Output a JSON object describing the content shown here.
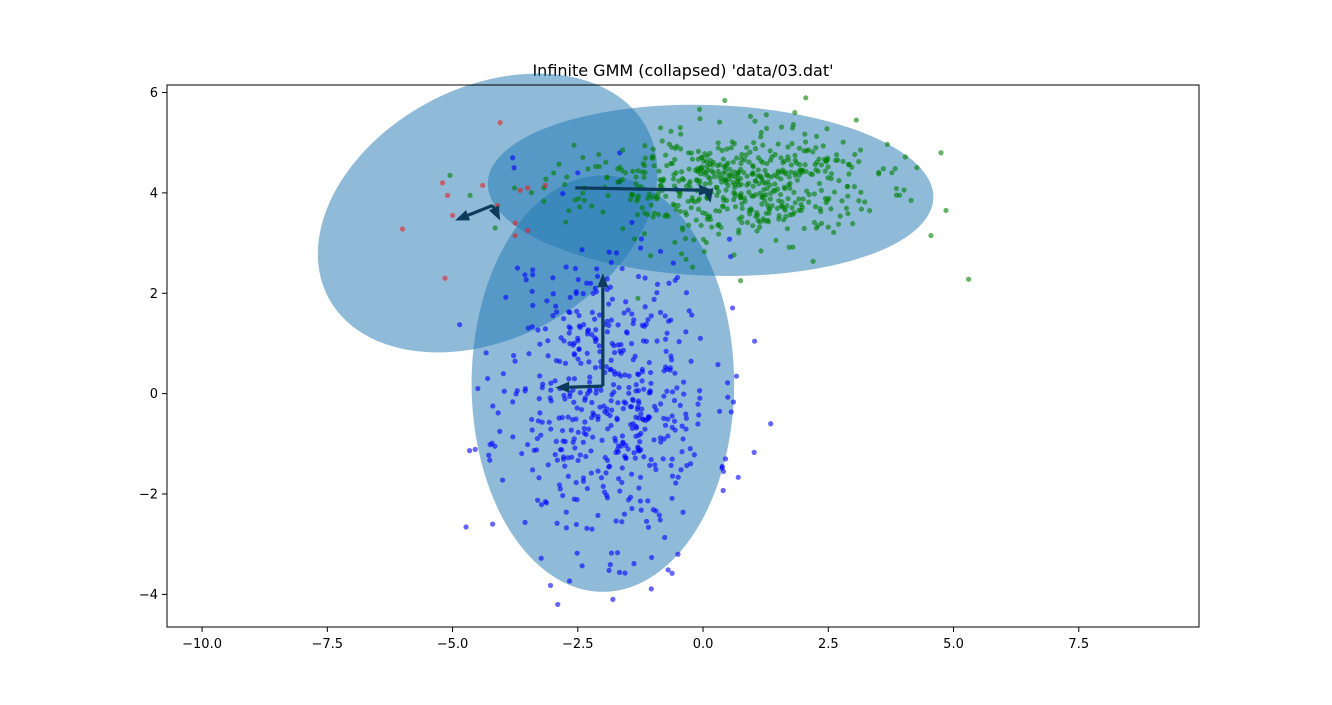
{
  "chart_data": {
    "type": "scatter",
    "title": "Infinite GMM (collapsed) 'data/03.dat'",
    "xlabel": "",
    "ylabel": "",
    "xlim": [
      -10.7,
      9.9
    ],
    "ylim": [
      -4.65,
      6.15
    ],
    "xticks": [
      -10.0,
      -7.5,
      -5.0,
      -2.5,
      0.0,
      2.5,
      5.0,
      7.5
    ],
    "xtick_labels": [
      "−10.0",
      "−7.5",
      "−5.0",
      "−2.5",
      "0.0",
      "2.5",
      "5.0",
      "7.5"
    ],
    "yticks": [
      -4,
      -2,
      0,
      2,
      4,
      6
    ],
    "ytick_labels": [
      "−4",
      "−2",
      "0",
      "2",
      "4",
      "6"
    ],
    "grid": false,
    "colors": {
      "blue_points": "#0000ff",
      "green_points": "#008000",
      "red_points": "#e32222",
      "ellipse_fill": "#1f77b4",
      "arrow": "#0d3b5c"
    },
    "ellipses": [
      {
        "center": [
          -2.0,
          0.2
        ],
        "half_width": 2.62,
        "half_height": 4.15,
        "angle_deg": 0
      },
      {
        "center": [
          0.15,
          4.05
        ],
        "half_width": 4.45,
        "half_height": 1.7,
        "angle_deg": -2
      },
      {
        "center": [
          -4.3,
          3.6
        ],
        "half_width": 3.6,
        "half_height": 2.5,
        "angle_deg": 28
      }
    ],
    "arrows": [
      {
        "from": [
          -2.0,
          0.15
        ],
        "to": [
          -2.0,
          2.4
        ]
      },
      {
        "from": [
          -2.0,
          0.15
        ],
        "to": [
          -2.95,
          0.12
        ]
      },
      {
        "from": [
          -2.55,
          4.1
        ],
        "to": [
          0.2,
          4.05
        ]
      },
      {
        "from": [
          0.1,
          4.05
        ],
        "to": [
          0.15,
          3.8
        ]
      },
      {
        "from": [
          -4.2,
          3.75
        ],
        "to": [
          -4.95,
          3.45
        ]
      },
      {
        "from": [
          -4.2,
          3.75
        ],
        "to": [
          -4.05,
          3.45
        ]
      }
    ],
    "series": [
      {
        "color": "blue",
        "generator": {
          "mean": [
            -1.9,
            0.0
          ],
          "std": [
            1.05,
            1.55
          ],
          "n": 520,
          "seed": 11
        },
        "extra_points": [
          [
            -2.9,
            -4.2
          ],
          [
            -1.8,
            -4.1
          ],
          [
            -4.2,
            -2.6
          ],
          [
            1.35,
            -0.6
          ],
          [
            -0.5,
            -3.2
          ],
          [
            0.45,
            -1.3
          ],
          [
            -4.3,
            0.3
          ],
          [
            -3.8,
            4.7
          ],
          [
            -2.5,
            4.4
          ]
        ]
      },
      {
        "color": "green",
        "generator": {
          "mean": [
            0.5,
            4.15
          ],
          "std": [
            1.45,
            0.55
          ],
          "n": 560,
          "seed": 23
        },
        "extra_points": [
          [
            5.3,
            2.28
          ],
          [
            4.85,
            3.65
          ],
          [
            4.55,
            3.15
          ],
          [
            4.75,
            4.8
          ],
          [
            -5.05,
            4.35
          ],
          [
            -4.65,
            3.95
          ],
          [
            -4.15,
            3.3
          ],
          [
            0.75,
            2.25
          ],
          [
            -1.3,
            1.9
          ]
        ]
      },
      {
        "color": "red",
        "points": [
          [
            -4.05,
            5.4
          ],
          [
            -5.2,
            4.2
          ],
          [
            -5.1,
            3.95
          ],
          [
            -4.4,
            4.15
          ],
          [
            -3.5,
            4.1
          ],
          [
            -3.65,
            4.05
          ],
          [
            -3.15,
            4.15
          ],
          [
            -4.1,
            3.75
          ],
          [
            -5.0,
            3.55
          ],
          [
            -3.75,
            3.4
          ],
          [
            -3.5,
            3.25
          ],
          [
            -3.75,
            3.15
          ],
          [
            -6.0,
            3.28
          ],
          [
            -5.15,
            2.3
          ]
        ]
      }
    ]
  }
}
